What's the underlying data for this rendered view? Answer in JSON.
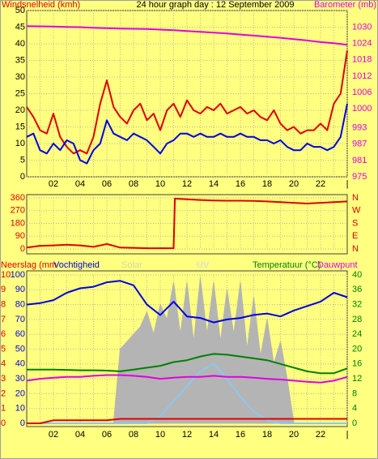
{
  "chart_data": [
    {
      "type": "line",
      "title": "24 hour graph day : 12 September 2009",
      "y_label": "Windsnelheid (kmh)",
      "y2_label": "Barometer (mb)",
      "xlim": [
        0,
        24
      ],
      "xticks": [
        {
          "value": 2,
          "label": "02"
        },
        {
          "value": 4,
          "label": "04"
        },
        {
          "value": 6,
          "label": "06"
        },
        {
          "value": 8,
          "label": "08"
        },
        10,
        12,
        14,
        16,
        18,
        20,
        22,
        {
          "value": 24,
          "label": "|"
        }
      ],
      "xminor": [
        1,
        3,
        5,
        7,
        9,
        11,
        13,
        15,
        17,
        19,
        21,
        23
      ],
      "ylim": [
        0,
        50
      ],
      "yticks": [
        0,
        5,
        10,
        15,
        20,
        25,
        30,
        35,
        40,
        45,
        50
      ],
      "y2lim": [
        975,
        1036.11
      ],
      "y2ticks": [
        975,
        981,
        987,
        993,
        1000,
        1006,
        1012,
        1018,
        1024,
        1030
      ],
      "grid": true,
      "x": [
        0,
        0.5,
        1,
        1.5,
        2,
        2.5,
        3,
        3.5,
        4,
        4.5,
        5,
        5.5,
        6,
        6.5,
        7,
        7.5,
        8,
        8.5,
        9,
        9.5,
        10,
        10.5,
        11,
        11.5,
        12,
        12.5,
        13,
        13.5,
        14,
        14.5,
        15,
        15.5,
        16,
        16.5,
        17,
        17.5,
        18,
        18.5,
        19,
        19.5,
        20,
        20.5,
        21,
        21.5,
        22,
        22.5,
        23,
        23.5,
        24
      ],
      "series": [
        {
          "color": "#e00000",
          "axis": "y",
          "values": [
            21,
            18,
            14,
            13,
            19,
            12,
            9,
            7,
            8,
            7,
            12,
            22,
            29,
            21,
            18,
            16,
            20,
            22,
            17,
            19,
            14,
            20,
            22,
            18,
            23,
            20,
            19,
            21,
            20,
            22,
            19,
            20,
            21,
            19,
            20,
            18,
            17,
            20,
            16,
            14,
            15,
            13,
            14,
            14,
            16,
            14,
            22,
            25,
            38
          ]
        },
        {
          "color": "#0000e0",
          "axis": "y",
          "values": [
            12,
            13,
            8,
            7,
            10,
            8,
            11,
            10,
            5,
            4,
            8,
            10,
            17,
            13,
            12,
            11,
            13,
            12,
            11,
            9,
            7,
            10,
            11,
            13,
            13,
            12,
            13,
            12,
            12,
            13,
            12,
            12,
            13,
            12,
            12,
            11,
            11,
            10,
            11,
            9,
            8,
            8,
            10,
            9,
            9,
            8,
            9,
            12,
            22
          ]
        },
        {
          "color": "#e000e0",
          "axis": "y2",
          "x": [
            0,
            1,
            2,
            3,
            4,
            5,
            6,
            7,
            8,
            9,
            10,
            11,
            12,
            13,
            14,
            15,
            16,
            17,
            18,
            19,
            20,
            21,
            22,
            23,
            24
          ],
          "values": [
            1030.4,
            1030.3,
            1030.2,
            1030.1,
            1030,
            1029.8,
            1029.6,
            1029.5,
            1029.4,
            1029.3,
            1029.1,
            1028.9,
            1028.6,
            1028.3,
            1028,
            1027.7,
            1027.3,
            1026.9,
            1026.5,
            1026.1,
            1025.6,
            1025.1,
            1024.5,
            1024.1,
            1023.5
          ]
        }
      ]
    },
    {
      "type": "line",
      "xlim": [
        0,
        24
      ],
      "xticks": [
        2,
        4,
        6,
        8,
        10,
        12,
        14,
        16,
        18,
        20,
        22
      ],
      "xminor": [
        1,
        3,
        5,
        7,
        9,
        11,
        13,
        15,
        17,
        19,
        21,
        23
      ],
      "ylim": [
        0,
        360
      ],
      "yticks": [
        0,
        90,
        180,
        270,
        360
      ],
      "y2lim": [
        0,
        360
      ],
      "y2ticks": [
        {
          "value": 0,
          "label": "N"
        },
        {
          "value": 90,
          "label": "E"
        },
        {
          "value": 180,
          "label": "S"
        },
        {
          "value": 270,
          "label": "W"
        },
        {
          "value": 360,
          "label": "N"
        }
      ],
      "grid": true,
      "series": [
        {
          "color": "#e00000",
          "axis": "y",
          "x": [
            0,
            1,
            2,
            3,
            4,
            5,
            6,
            7,
            8,
            9,
            10,
            11,
            11.1,
            12,
            13,
            14,
            15,
            16,
            17,
            18,
            19,
            20,
            21,
            22,
            23,
            24
          ],
          "values": [
            10,
            22,
            25,
            30,
            25,
            15,
            35,
            10,
            8,
            5,
            5,
            5,
            355,
            350,
            345,
            342,
            340,
            340,
            338,
            335,
            330,
            325,
            320,
            325,
            330,
            335
          ]
        }
      ]
    },
    {
      "type": "line",
      "xlim": [
        0,
        24
      ],
      "xticks": [
        {
          "value": 2,
          "label": "02"
        },
        {
          "value": 4,
          "label": "04"
        },
        {
          "value": 6,
          "label": "06"
        },
        {
          "value": 8,
          "label": "08"
        },
        10,
        12,
        14,
        16,
        18,
        20,
        22,
        {
          "value": 24,
          "label": "|"
        }
      ],
      "xminor": [
        1,
        3,
        5,
        7,
        9,
        11,
        13,
        15,
        17,
        19,
        21,
        23
      ],
      "ylim": [
        0,
        100
      ],
      "yticks": [
        0,
        10,
        20,
        30,
        40,
        50,
        60,
        70,
        80,
        90,
        100
      ],
      "precip_lim": [
        0,
        10
      ],
      "precip_ticks": [
        0,
        1,
        2,
        3,
        4,
        5,
        6,
        7,
        8,
        9,
        10
      ],
      "y2lim": [
        0,
        40
      ],
      "y2ticks": [
        0,
        4,
        8,
        12,
        16,
        20,
        24,
        28,
        32,
        36,
        40
      ],
      "grid": true,
      "x": [
        0,
        0.5,
        1,
        1.5,
        2,
        2.5,
        3,
        3.5,
        4,
        4.5,
        5,
        5.5,
        6,
        6.5,
        7,
        7.5,
        8,
        8.5,
        9,
        9.5,
        10,
        10.5,
        11,
        11.5,
        12,
        12.5,
        13,
        13.5,
        14,
        14.5,
        15,
        15.5,
        16,
        16.5,
        17,
        17.5,
        18,
        18.5,
        19,
        19.5,
        20,
        20.5,
        21,
        21.5,
        22,
        22.5,
        23,
        23.5,
        24
      ],
      "series": [
        {
          "name": "Solar",
          "kind": "area",
          "color": "#b4b4b4",
          "axis": "y",
          "values": [
            0,
            0,
            0,
            0,
            0,
            0,
            0,
            0,
            0,
            0,
            0,
            0,
            0,
            0,
            50,
            55,
            60,
            65,
            75,
            60,
            80,
            70,
            95,
            60,
            95,
            55,
            98,
            60,
            95,
            55,
            90,
            60,
            95,
            50,
            85,
            45,
            70,
            40,
            55,
            30,
            0,
            0,
            0,
            0,
            0,
            0,
            0,
            0,
            0
          ]
        },
        {
          "name": "UV",
          "color": "#8cc8f0",
          "axis": "y",
          "x": [
            0,
            1,
            2,
            3,
            4,
            5,
            6,
            7,
            8,
            9,
            10,
            11,
            12,
            13,
            14,
            15,
            16,
            17,
            18,
            19,
            20,
            21,
            22,
            23,
            24
          ],
          "values": [
            0,
            0,
            0,
            0,
            0,
            0,
            0,
            0,
            0,
            0,
            5,
            15,
            25,
            35,
            40,
            30,
            18,
            8,
            2,
            0,
            0,
            0,
            0,
            0,
            0
          ]
        },
        {
          "name": "Neerslag (mm",
          "color": "#e00000",
          "axis": "precip",
          "x": [
            0,
            1,
            2,
            3,
            4,
            5,
            6,
            7,
            8,
            9,
            10,
            11,
            12,
            13,
            14,
            15,
            16,
            17,
            18,
            19,
            20,
            21,
            22,
            23,
            24
          ],
          "values": [
            0,
            0,
            0.2,
            0.2,
            0.2,
            0.2,
            0.2,
            0.3,
            0.3,
            0.3,
            0.3,
            0.3,
            0.3,
            0.3,
            0.3,
            0.3,
            0.3,
            0.3,
            0.3,
            0.3,
            0.3,
            0.3,
            0.3,
            0.3,
            0.3
          ]
        },
        {
          "name": "Vochtigheid",
          "color": "#0000e0",
          "axis": "y",
          "x": [
            0,
            1,
            2,
            3,
            4,
            5,
            6,
            7,
            8,
            9,
            10,
            11,
            12,
            13,
            14,
            15,
            16,
            17,
            18,
            19,
            20,
            21,
            22,
            23,
            24
          ],
          "values": [
            80,
            81,
            83,
            88,
            91,
            92,
            95,
            96,
            93,
            80,
            73,
            82,
            72,
            71,
            68,
            70,
            71,
            73,
            74,
            72,
            76,
            79,
            82,
            88,
            85
          ]
        },
        {
          "name": "Temperatuur (°C)",
          "color": "#008000",
          "axis": "y2",
          "x": [
            0,
            1,
            2,
            3,
            4,
            5,
            6,
            7,
            8,
            9,
            10,
            11,
            12,
            13,
            14,
            15,
            16,
            17,
            18,
            19,
            20,
            21,
            22,
            23,
            24
          ],
          "values": [
            14.5,
            14.5,
            14.5,
            14.4,
            14.3,
            14.3,
            14.2,
            14,
            14.5,
            15,
            15.5,
            16.5,
            17,
            18,
            18.7,
            18.5,
            18,
            17.5,
            17,
            16,
            15,
            14,
            13.5,
            13.5,
            14.8
          ]
        },
        {
          "name": "Dauwpunt",
          "color": "#e000e0",
          "axis": "y2",
          "x": [
            0,
            1,
            2,
            3,
            4,
            5,
            6,
            7,
            8,
            9,
            10,
            11,
            12,
            13,
            14,
            15,
            16,
            17,
            18,
            19,
            20,
            21,
            22,
            23,
            24
          ],
          "values": [
            11.5,
            12,
            12.3,
            12.5,
            12.5,
            12.8,
            13,
            13,
            12.8,
            12.5,
            12,
            12.3,
            12.5,
            12.5,
            12.8,
            12.5,
            12.5,
            12.3,
            12,
            11.8,
            11.5,
            11.2,
            11,
            11.5,
            12.5
          ]
        }
      ]
    }
  ]
}
